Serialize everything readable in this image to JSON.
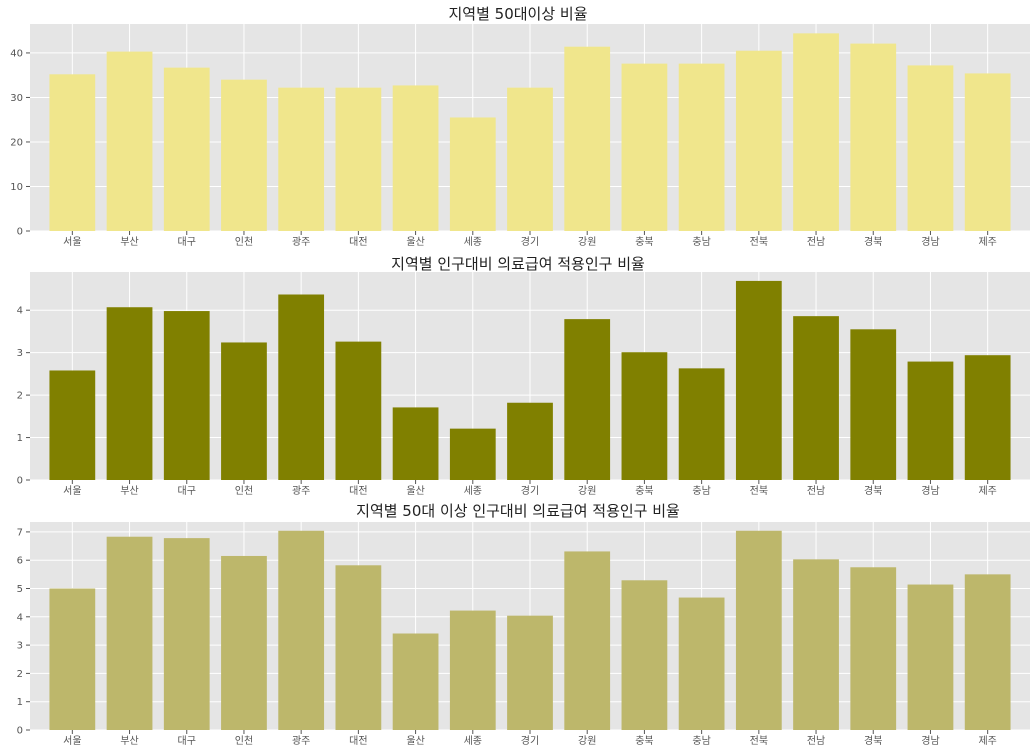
{
  "chart_data": [
    {
      "type": "bar",
      "title": "지역별 50대이상 비율",
      "categories": [
        "서울",
        "부산",
        "대구",
        "인천",
        "광주",
        "대전",
        "울산",
        "세종",
        "경기",
        "강원",
        "충북",
        "충남",
        "전북",
        "전남",
        "경북",
        "경남",
        "제주"
      ],
      "values": [
        35.2,
        40.3,
        36.7,
        34.0,
        32.2,
        32.2,
        32.7,
        25.5,
        32.2,
        41.4,
        37.6,
        37.6,
        40.5,
        44.4,
        42.1,
        37.2,
        35.4
      ],
      "xlabel": "",
      "ylabel": "",
      "ylim": [
        0,
        46.5
      ],
      "yticks": [
        0,
        10,
        20,
        30,
        40
      ],
      "color": "#f0e68c",
      "grid": true
    },
    {
      "type": "bar",
      "title": "지역별 인구대비 의료급여 적용인구 비율",
      "categories": [
        "서울",
        "부산",
        "대구",
        "인천",
        "광주",
        "대전",
        "울산",
        "세종",
        "경기",
        "강원",
        "충북",
        "충남",
        "전북",
        "전남",
        "경북",
        "경남",
        "제주"
      ],
      "values": [
        2.58,
        4.07,
        3.98,
        3.24,
        4.37,
        3.26,
        1.71,
        1.21,
        1.82,
        3.79,
        3.01,
        2.63,
        4.69,
        3.86,
        3.55,
        2.79,
        2.94
      ],
      "xlabel": "",
      "ylabel": "",
      "ylim": [
        0,
        4.9
      ],
      "yticks": [
        0,
        1,
        2,
        3,
        4
      ],
      "color": "#808000",
      "grid": true
    },
    {
      "type": "bar",
      "title": "지역별 50대 이상 인구대비 의료급여 적용인구 비율",
      "categories": [
        "서울",
        "부산",
        "대구",
        "인천",
        "광주",
        "대전",
        "울산",
        "세종",
        "경기",
        "강원",
        "충북",
        "충남",
        "전북",
        "전남",
        "경북",
        "경남",
        "제주"
      ],
      "values": [
        5.0,
        6.83,
        6.78,
        6.15,
        7.04,
        5.82,
        3.41,
        4.22,
        4.04,
        6.31,
        5.29,
        4.68,
        7.04,
        6.03,
        5.75,
        5.14,
        5.5
      ],
      "xlabel": "",
      "ylabel": "",
      "ylim": [
        0,
        7.35
      ],
      "yticks": [
        0,
        1,
        2,
        3,
        4,
        5,
        6,
        7
      ],
      "color": "#bdb76b",
      "grid": true
    }
  ]
}
